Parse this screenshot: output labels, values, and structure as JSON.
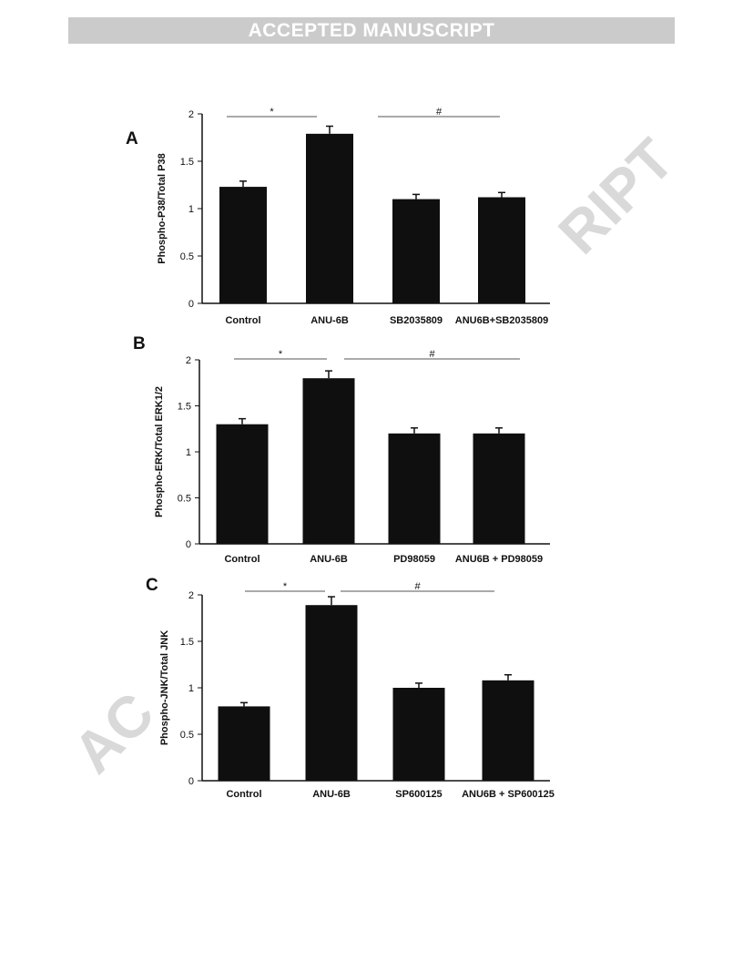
{
  "header": {
    "banner": "ACCEPTED MANUSCRIPT"
  },
  "watermark": {
    "part1": "RIPT",
    "part2": "AC"
  },
  "chart_data": [
    {
      "type": "bar",
      "panel_label": "A",
      "ylabel": "Phospho-P38/Total P38",
      "categories": [
        "Control",
        "ANU-6B",
        "SB2035809",
        "ANU6B+SB2035809"
      ],
      "values": [
        1.23,
        1.79,
        1.1,
        1.12
      ],
      "errors": [
        0.06,
        0.08,
        0.05,
        0.05
      ],
      "ylim": [
        0,
        2
      ],
      "yticks": [
        "0",
        "0.5",
        "1",
        "1.5",
        "2"
      ],
      "annotations": [
        {
          "text": "*",
          "from": 0,
          "to": 1
        },
        {
          "text": "#",
          "from": 2,
          "to": 3
        }
      ]
    },
    {
      "type": "bar",
      "panel_label": "B",
      "ylabel": "Phospho-ERK/Total ERK1/2",
      "categories": [
        "Control",
        "ANU-6B",
        "PD98059",
        "ANU6B + PD98059"
      ],
      "values": [
        1.3,
        1.8,
        1.2,
        1.2
      ],
      "errors": [
        0.06,
        0.08,
        0.06,
        0.06
      ],
      "ylim": [
        0,
        2
      ],
      "yticks": [
        "0",
        "0.5",
        "1",
        "1.5",
        "2"
      ],
      "annotations": [
        {
          "text": "*",
          "from": 0,
          "to": 1
        },
        {
          "text": "#",
          "from": 1,
          "to": 3
        }
      ]
    },
    {
      "type": "bar",
      "panel_label": "C",
      "ylabel": "Phospho-JNK/Total JNK",
      "categories": [
        "Control",
        "ANU-6B",
        "SP600125",
        "ANU6B + SP600125"
      ],
      "values": [
        0.8,
        1.89,
        1.0,
        1.08
      ],
      "errors": [
        0.04,
        0.09,
        0.05,
        0.06
      ],
      "ylim": [
        0,
        2
      ],
      "yticks": [
        "0",
        "0.5",
        "1",
        "1.5",
        "2"
      ],
      "annotations": [
        {
          "text": "*",
          "from": 0,
          "to": 1
        },
        {
          "text": "#",
          "from": 1,
          "to": 3
        }
      ]
    }
  ]
}
